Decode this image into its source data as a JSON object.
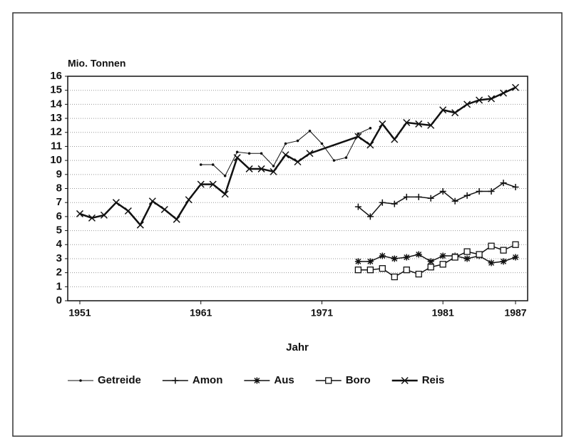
{
  "chart_data": {
    "type": "line",
    "y_label": "Mio. Tonnen",
    "x_label": "Jahr",
    "xlim": [
      1950,
      1988
    ],
    "xticks": [
      1951,
      1961,
      1971,
      1981,
      1987
    ],
    "ylim": [
      0,
      16
    ],
    "yticks": [
      0,
      1,
      2,
      3,
      4,
      5,
      6,
      7,
      8,
      9,
      10,
      11,
      12,
      13,
      14,
      15,
      16
    ],
    "grid": true,
    "legend": "bottom",
    "series": [
      {
        "name": "Getreide",
        "color": "#111",
        "marker": "dot",
        "line_width": 1,
        "x": [
          1961,
          1962,
          1963,
          1964,
          1965,
          1966,
          1967,
          1968,
          1969,
          1970,
          1971,
          1972,
          1973,
          1974,
          1975
        ],
        "values": [
          9.7,
          9.7,
          8.9,
          10.6,
          10.5,
          10.5,
          9.6,
          11.2,
          11.4,
          12.1,
          11.2,
          10.0,
          10.2,
          11.9,
          12.3
        ]
      },
      {
        "name": "Amon",
        "color": "#111",
        "marker": "plus",
        "line_width": 1.5,
        "x": [
          1974,
          1975,
          1976,
          1977,
          1978,
          1979,
          1980,
          1981,
          1982,
          1983,
          1984,
          1985,
          1986,
          1987
        ],
        "values": [
          6.7,
          6.0,
          7.0,
          6.9,
          7.4,
          7.4,
          7.3,
          7.8,
          7.1,
          7.5,
          7.8,
          7.8,
          8.4,
          8.1
        ]
      },
      {
        "name": "Aus",
        "color": "#111",
        "marker": "asterisk",
        "line_width": 1.5,
        "x": [
          1974,
          1975,
          1976,
          1977,
          1978,
          1979,
          1980,
          1981,
          1982,
          1983,
          1984,
          1985,
          1986,
          1987
        ],
        "values": [
          2.8,
          2.8,
          3.2,
          3.0,
          3.1,
          3.3,
          2.8,
          3.2,
          3.2,
          3.0,
          3.2,
          2.7,
          2.8,
          3.1
        ]
      },
      {
        "name": "Boro",
        "color": "#111",
        "marker": "square",
        "line_width": 1.5,
        "x": [
          1974,
          1975,
          1976,
          1977,
          1978,
          1979,
          1980,
          1981,
          1982,
          1983,
          1984,
          1985,
          1986,
          1987
        ],
        "values": [
          2.2,
          2.2,
          2.3,
          1.7,
          2.2,
          1.9,
          2.4,
          2.6,
          3.1,
          3.5,
          3.3,
          3.9,
          3.6,
          4.0
        ]
      },
      {
        "name": "Reis",
        "color": "#111",
        "marker": "cross",
        "line_width": 2.5,
        "x": [
          1951,
          1952,
          1953,
          1954,
          1955,
          1956,
          1957,
          1958,
          1959,
          1960,
          1961,
          1962,
          1963,
          1964,
          1965,
          1966,
          1967,
          1968,
          1969,
          1970,
          1974,
          1975,
          1976,
          1977,
          1978,
          1979,
          1980,
          1981,
          1982,
          1983,
          1984,
          1985,
          1986,
          1987
        ],
        "values": [
          6.2,
          5.9,
          6.1,
          7.0,
          6.4,
          5.4,
          7.1,
          6.5,
          5.8,
          7.2,
          8.3,
          8.3,
          7.6,
          10.2,
          9.4,
          9.4,
          9.2,
          10.4,
          9.9,
          10.5,
          11.7,
          11.1,
          12.6,
          11.5,
          12.7,
          12.6,
          12.5,
          13.6,
          13.4,
          14.0,
          14.3,
          14.4,
          14.8,
          15.2
        ]
      }
    ]
  }
}
